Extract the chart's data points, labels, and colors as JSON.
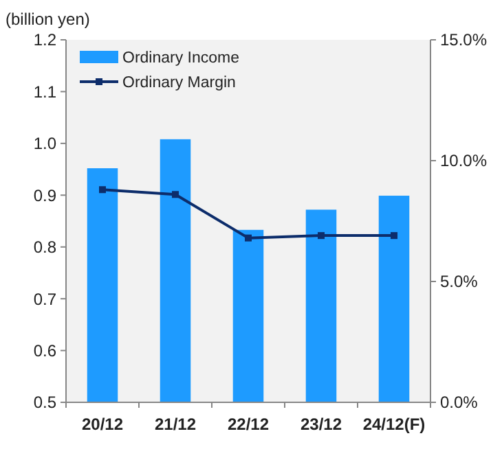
{
  "chart_data": {
    "type": "bar",
    "ylabel": "(billion yen)",
    "categories": [
      "20/12",
      "21/12",
      "22/12",
      "23/12",
      "24/12(F)"
    ],
    "series": [
      {
        "name": "Ordinary Income",
        "color": "#1e9bff",
        "values": [
          0.952,
          1.008,
          0.833,
          0.872,
          0.899
        ]
      },
      {
        "name": "Ordinary Margin",
        "type": "line",
        "axis": "y2",
        "color": "#0d2d6b",
        "values": [
          8.8,
          8.6,
          6.8,
          6.9,
          6.9
        ]
      }
    ],
    "ylim": [
      0.5,
      1.2
    ],
    "yticks": [
      {
        "value": 0.5,
        "label": "0.5"
      },
      {
        "value": 0.6,
        "label": "0.6"
      },
      {
        "value": 0.7,
        "label": "0.7"
      },
      {
        "value": 0.8,
        "label": "0.8"
      },
      {
        "value": 0.9,
        "label": "0.9"
      },
      {
        "value": 1.0,
        "label": "1.0"
      },
      {
        "value": 1.1,
        "label": "1.1"
      },
      {
        "value": 1.2,
        "label": "1.2"
      }
    ],
    "y2lim": [
      0,
      15
    ],
    "y2ticks": [
      {
        "value": 0,
        "label": "0.0%"
      },
      {
        "value": 5,
        "label": "5.0%"
      },
      {
        "value": 10,
        "label": "10.0%"
      },
      {
        "value": 15,
        "label": "15.0%"
      }
    ],
    "legend": "top left",
    "marker": "square",
    "grid": false
  }
}
